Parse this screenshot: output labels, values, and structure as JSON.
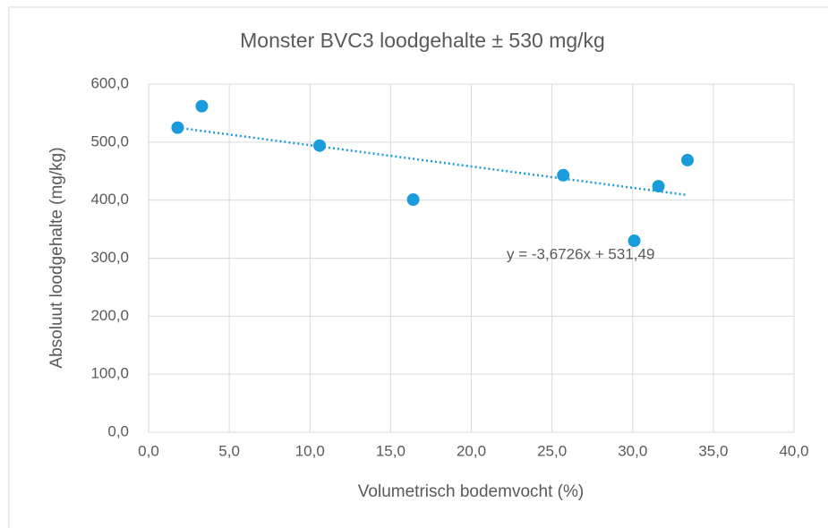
{
  "chart_data": {
    "type": "scatter",
    "title": "Monster BVC3 loodgehalte ± 530 mg/kg",
    "x_label": "Volumetrisch bodemvocht (%)",
    "y_label": "Absoluut loodgehalte (mg/kg)",
    "series": [
      {
        "name": "Monster BVC3",
        "color": "#1a9bdc",
        "x": [
          1.8,
          3.3,
          10.6,
          16.4,
          25.7,
          30.1,
          31.6,
          33.4
        ],
        "values": [
          525,
          562,
          494,
          401,
          443,
          330,
          424,
          469
        ]
      }
    ],
    "trendline": {
      "label": "y = -3,6726x + 531,49",
      "slope": -3.6726,
      "intercept": 531.49
    },
    "xlim": [
      0,
      40
    ],
    "xticks": [
      {
        "value": 0,
        "label": "0,0"
      },
      {
        "value": 5,
        "label": "5,0"
      },
      {
        "value": 10,
        "label": "10,0"
      },
      {
        "value": 15,
        "label": "15,0"
      },
      {
        "value": 20,
        "label": "20,0"
      },
      {
        "value": 25,
        "label": "25,0"
      },
      {
        "value": 30,
        "label": "30,0"
      },
      {
        "value": 35,
        "label": "35,0"
      },
      {
        "value": 40,
        "label": "40,0"
      }
    ],
    "ylim": [
      0,
      600
    ],
    "yticks": [
      {
        "value": 0,
        "label": "0,0"
      },
      {
        "value": 100,
        "label": "100,0"
      },
      {
        "value": 200,
        "label": "200,0"
      },
      {
        "value": 300,
        "label": "300,0"
      },
      {
        "value": 400,
        "label": "400,0"
      },
      {
        "value": 500,
        "label": "500,0"
      },
      {
        "value": 600,
        "label": "600,0"
      }
    ],
    "grid": true
  }
}
